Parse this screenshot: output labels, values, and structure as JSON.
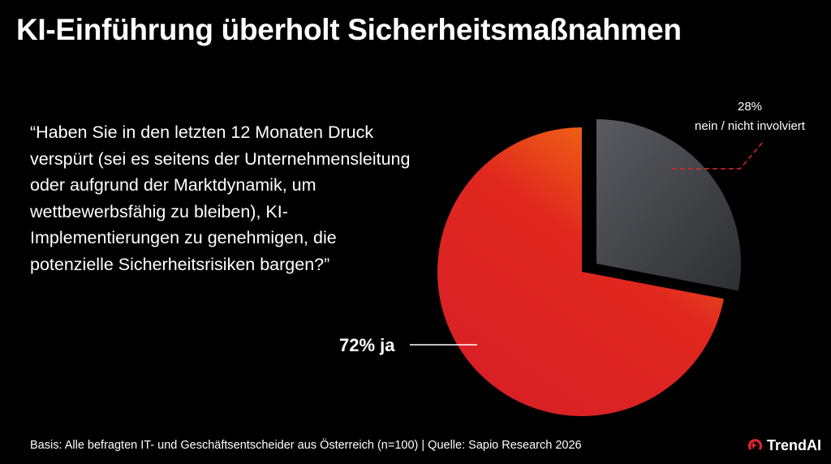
{
  "title": "KI-Einführung überholt Sicherheitsmaßnahmen",
  "question": "“Haben Sie in den letzten 12 Monaten Druck verspürt (sei es seitens der Unternehmensleitung oder aufgrund der Marktdynamik, um wettbewerbsfähig zu bleiben), KI-Implementierungen zu genehmigen, die potenzielle Sicherheitsrisiken bargen?”",
  "footer": "Basis: Alle befragten IT- und Geschäftsentscheider aus Österreich (n=100) | Quelle: Sapio Research 2026",
  "logo": {
    "text": "TrendAI",
    "icon": "trendai-swirl-icon",
    "color": "#e3262d"
  },
  "chart_data": {
    "type": "pie",
    "slices": [
      {
        "label": "nein / nicht involviert",
        "value": 28,
        "value_label": "28%",
        "color": "#4a4b4f",
        "exploded": true
      },
      {
        "label": "ja",
        "value": 72,
        "value_label": "72% ja",
        "color": "#e02424"
      }
    ]
  }
}
